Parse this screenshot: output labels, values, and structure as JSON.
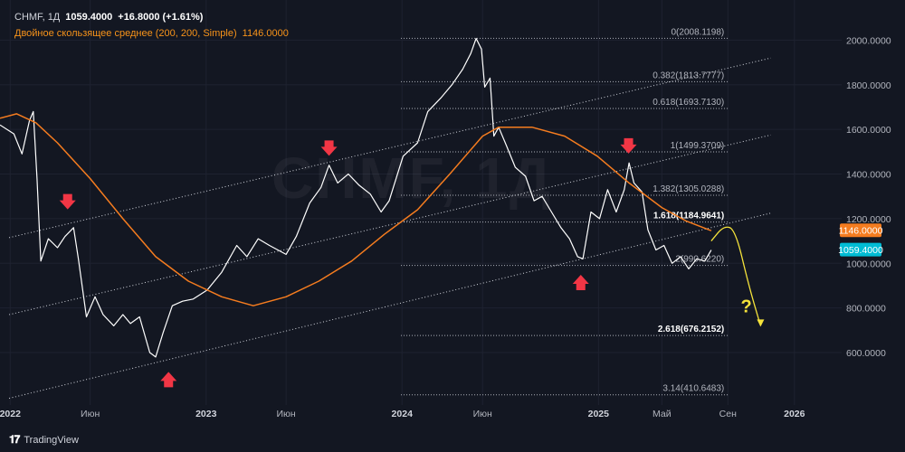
{
  "header": {
    "symbol": "CHMF",
    "interval": "1Д",
    "price": "1059.4000",
    "change": "+16.8000 (+1.61%)",
    "indicator_label": "Двойное скользящее среднее (200, 200, Simple)",
    "indicator_value": "1146.0000"
  },
  "watermark": "CHMF, 1Д",
  "brand": "TradingView",
  "chart_data": {
    "type": "line",
    "y_axis": {
      "ticks": [
        "2000.0000",
        "1800.0000",
        "1600.0000",
        "1400.0000",
        "1200.0000",
        "1000.0000",
        "800.0000",
        "600.0000"
      ],
      "tick_values": [
        2000,
        1800,
        1600,
        1400,
        1200,
        1000,
        800,
        600
      ],
      "range": [
        365,
        2180
      ],
      "price_badge": "1059.4000",
      "ma_badge": "1146.0000"
    },
    "x_axis": {
      "ticks": [
        "2022",
        "Июн",
        "2023",
        "Июн",
        "2024",
        "Июн",
        "2025",
        "Май",
        "Сен",
        "2026"
      ],
      "bold": [
        true,
        false,
        true,
        false,
        true,
        false,
        true,
        false,
        false,
        true
      ],
      "tick_dates": [
        "2022-01-03",
        "2022-06-01",
        "2023-01-03",
        "2023-06-01",
        "2024-01-03",
        "2024-06-01",
        "2025-01-03",
        "2025-05-01",
        "2025-09-01",
        "2026-01-03"
      ],
      "range": [
        "2021-12-15",
        "2026-04-01"
      ]
    },
    "fib_levels": [
      {
        "label": "0(2008.1198)",
        "value": 2008.1198
      },
      {
        "label": "0.382(1813.7777)",
        "value": 1813.7777
      },
      {
        "label": "0.618(1693.7130)",
        "value": 1693.713
      },
      {
        "label": "1(1499.3709)",
        "value": 1499.3709
      },
      {
        "label": "1.382(1305.0288)",
        "value": 1305.0288
      },
      {
        "label": "1.618(1184.9641)",
        "value": 1184.9641
      },
      {
        "label": "2(990.6220)",
        "value": 990.622
      },
      {
        "label": "2.618(676.2152)",
        "value": 676.2152
      },
      {
        "label": "3.14(410.6483)",
        "value": 410.6483
      }
    ],
    "fib_range": [
      "2024-01-01",
      "2025-09-01"
    ],
    "series": [
      {
        "type": "price",
        "color": "#ffffff",
        "points": [
          [
            "2021-12-15",
            1620
          ],
          [
            "2022-01-10",
            1580
          ],
          [
            "2022-01-25",
            1490
          ],
          [
            "2022-02-08",
            1640
          ],
          [
            "2022-02-15",
            1680
          ],
          [
            "2022-02-22",
            1380
          ],
          [
            "2022-03-01",
            1010
          ],
          [
            "2022-03-15",
            1110
          ],
          [
            "2022-04-01",
            1070
          ],
          [
            "2022-04-15",
            1120
          ],
          [
            "2022-05-01",
            1160
          ],
          [
            "2022-05-10",
            1020
          ],
          [
            "2022-05-25",
            760
          ],
          [
            "2022-06-10",
            850
          ],
          [
            "2022-06-25",
            770
          ],
          [
            "2022-07-15",
            720
          ],
          [
            "2022-08-01",
            770
          ],
          [
            "2022-08-15",
            730
          ],
          [
            "2022-09-01",
            760
          ],
          [
            "2022-09-20",
            600
          ],
          [
            "2022-10-01",
            580
          ],
          [
            "2022-10-15",
            690
          ],
          [
            "2022-11-01",
            810
          ],
          [
            "2022-11-20",
            830
          ],
          [
            "2022-12-10",
            840
          ],
          [
            "2023-01-05",
            880
          ],
          [
            "2023-02-01",
            960
          ],
          [
            "2023-03-01",
            1080
          ],
          [
            "2023-03-20",
            1030
          ],
          [
            "2023-04-10",
            1110
          ],
          [
            "2023-05-01",
            1080
          ],
          [
            "2023-06-01",
            1040
          ],
          [
            "2023-06-20",
            1120
          ],
          [
            "2023-07-15",
            1270
          ],
          [
            "2023-08-05",
            1340
          ],
          [
            "2023-08-20",
            1440
          ],
          [
            "2023-09-05",
            1360
          ],
          [
            "2023-09-25",
            1400
          ],
          [
            "2023-10-15",
            1350
          ],
          [
            "2023-11-05",
            1310
          ],
          [
            "2023-11-25",
            1230
          ],
          [
            "2023-12-10",
            1280
          ],
          [
            "2024-01-05",
            1480
          ],
          [
            "2024-02-01",
            1540
          ],
          [
            "2024-02-20",
            1680
          ],
          [
            "2024-03-15",
            1740
          ],
          [
            "2024-04-05",
            1800
          ],
          [
            "2024-04-25",
            1870
          ],
          [
            "2024-05-10",
            1940
          ],
          [
            "2024-05-20",
            2008
          ],
          [
            "2024-05-30",
            1960
          ],
          [
            "2024-06-05",
            1790
          ],
          [
            "2024-06-15",
            1830
          ],
          [
            "2024-06-22",
            1570
          ],
          [
            "2024-07-01",
            1610
          ],
          [
            "2024-07-15",
            1530
          ],
          [
            "2024-08-01",
            1430
          ],
          [
            "2024-08-20",
            1390
          ],
          [
            "2024-09-05",
            1280
          ],
          [
            "2024-09-20",
            1300
          ],
          [
            "2024-10-05",
            1240
          ],
          [
            "2024-10-25",
            1160
          ],
          [
            "2024-11-10",
            1110
          ],
          [
            "2024-11-25",
            1030
          ],
          [
            "2024-12-05",
            1020
          ],
          [
            "2024-12-20",
            1230
          ],
          [
            "2025-01-05",
            1200
          ],
          [
            "2025-01-20",
            1330
          ],
          [
            "2025-02-05",
            1230
          ],
          [
            "2025-02-20",
            1330
          ],
          [
            "2025-03-01",
            1450
          ],
          [
            "2025-03-10",
            1360
          ],
          [
            "2025-03-25",
            1320
          ],
          [
            "2025-04-05",
            1150
          ],
          [
            "2025-04-20",
            1060
          ],
          [
            "2025-05-05",
            1080
          ],
          [
            "2025-05-20",
            1000
          ],
          [
            "2025-06-05",
            1030
          ],
          [
            "2025-06-20",
            975
          ],
          [
            "2025-07-05",
            1020
          ],
          [
            "2025-07-20",
            1010
          ],
          [
            "2025-08-01",
            1059.4
          ]
        ]
      },
      {
        "type": "ma",
        "color": "#f57c1f",
        "points": [
          [
            "2021-12-15",
            1650
          ],
          [
            "2022-01-15",
            1670
          ],
          [
            "2022-02-20",
            1630
          ],
          [
            "2022-04-01",
            1540
          ],
          [
            "2022-06-01",
            1380
          ],
          [
            "2022-08-01",
            1200
          ],
          [
            "2022-10-01",
            1030
          ],
          [
            "2022-12-01",
            920
          ],
          [
            "2023-02-01",
            850
          ],
          [
            "2023-04-01",
            810
          ],
          [
            "2023-06-01",
            850
          ],
          [
            "2023-08-01",
            920
          ],
          [
            "2023-10-01",
            1010
          ],
          [
            "2023-12-01",
            1130
          ],
          [
            "2024-02-01",
            1240
          ],
          [
            "2024-04-01",
            1400
          ],
          [
            "2024-06-01",
            1570
          ],
          [
            "2024-07-01",
            1610
          ],
          [
            "2024-09-01",
            1610
          ],
          [
            "2024-11-01",
            1570
          ],
          [
            "2025-01-01",
            1480
          ],
          [
            "2025-03-01",
            1360
          ],
          [
            "2025-05-01",
            1250
          ],
          [
            "2025-06-15",
            1190
          ],
          [
            "2025-08-01",
            1146
          ]
        ]
      }
    ],
    "channel_lines": [
      {
        "start": [
          "2022-01-01",
          1115
        ],
        "end": [
          "2025-11-20",
          1920
        ]
      },
      {
        "start": [
          "2022-01-01",
          770
        ],
        "end": [
          "2025-11-20",
          1575
        ]
      },
      {
        "start": [
          "2022-01-01",
          395
        ],
        "end": [
          "2025-11-20",
          1225
        ]
      }
    ],
    "annotations": {
      "arrows_down": [
        [
          "2022-04-20",
          1270
        ],
        [
          "2023-08-20",
          1510
        ],
        [
          "2025-02-28",
          1520
        ]
      ],
      "arrows_up": [
        [
          "2022-10-25",
          485
        ],
        [
          "2024-12-01",
          920
        ]
      ],
      "forecast_curve": [
        [
          "2025-08-01",
          1100
        ],
        [
          "2025-08-25",
          1170
        ],
        [
          "2025-09-15",
          1150
        ],
        [
          "2025-10-10",
          900
        ],
        [
          "2025-11-01",
          720
        ]
      ],
      "forecast_mark": "?",
      "forecast_mark_at": [
        "2025-09-25",
        780
      ]
    }
  }
}
